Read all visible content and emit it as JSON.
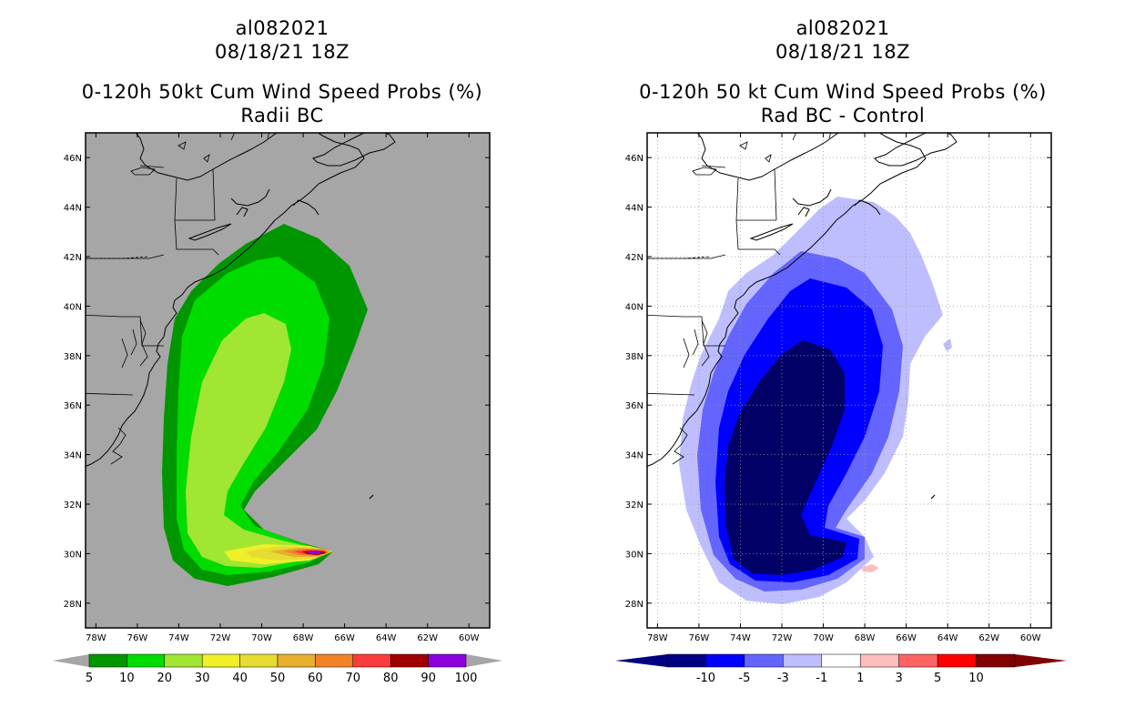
{
  "left_panel": {
    "storm_id": "al082021",
    "datetime": "08/18/21 18Z",
    "title": "0-120h 50kt Cum Wind Speed Probs (%)",
    "subtitle": "Radii BC",
    "background": "#a6a6a6"
  },
  "right_panel": {
    "storm_id": "al082021",
    "datetime": "08/18/21 18Z",
    "title": "0-120h 50 kt Cum Wind Speed Probs (%)",
    "subtitle": "Rad BC - Control",
    "background": "#ffffff"
  },
  "chart_data": [
    {
      "type": "heatmap",
      "title": "0-120h 50kt Cum Wind Speed Probs (%)",
      "subtitle": "Radii BC",
      "lon_ticks": [
        "78W",
        "76W",
        "74W",
        "72W",
        "70W",
        "68W",
        "66W",
        "64W",
        "62W",
        "60W"
      ],
      "lat_ticks": [
        "46N",
        "44N",
        "42N",
        "40N",
        "38N",
        "36N",
        "34N",
        "32N",
        "30N",
        "28N"
      ],
      "lon_range": [
        -78.5,
        -59.0
      ],
      "lat_range": [
        27.0,
        47.0
      ],
      "colorbar": {
        "labels": [
          "5",
          "10",
          "20",
          "30",
          "40",
          "50",
          "60",
          "70",
          "80",
          "90",
          "100"
        ],
        "colors": [
          "#009600",
          "#00dc00",
          "#a0e632",
          "#f0f028",
          "#e6dc32",
          "#e6af2d",
          "#f08228",
          "#fa3c3c",
          "#a00000",
          "#8c00dc"
        ],
        "end_color": "#a6a6a6"
      },
      "contour_levels": [
        5,
        10,
        20,
        30,
        40,
        50,
        60,
        70,
        80,
        90
      ]
    },
    {
      "type": "heatmap",
      "title": "0-120h 50 kt Cum Wind Speed Probs (%)",
      "subtitle": "Rad BC - Control",
      "lon_ticks": [
        "78W",
        "76W",
        "74W",
        "72W",
        "70W",
        "68W",
        "66W",
        "64W",
        "62W",
        "60W"
      ],
      "lat_ticks": [
        "46N",
        "44N",
        "42N",
        "40N",
        "38N",
        "36N",
        "34N",
        "32N",
        "30N",
        "28N"
      ],
      "lon_range": [
        -78.5,
        -59.0
      ],
      "lat_range": [
        27.0,
        47.0
      ],
      "grid": true,
      "colorbar": {
        "labels": [
          "-10",
          "-5",
          "-3",
          "-1",
          "1",
          "3",
          "5",
          "10"
        ],
        "colors": [
          "#000080",
          "#0000ff",
          "#6464ff",
          "#bebeff",
          "#ffffff",
          "#ffbebe",
          "#ff6464",
          "#ff0000",
          "#800000"
        ],
        "end_colors": [
          "#000080",
          "#800000"
        ]
      },
      "contour_levels": [
        -10,
        -5,
        -3,
        -1,
        1
      ]
    }
  ]
}
